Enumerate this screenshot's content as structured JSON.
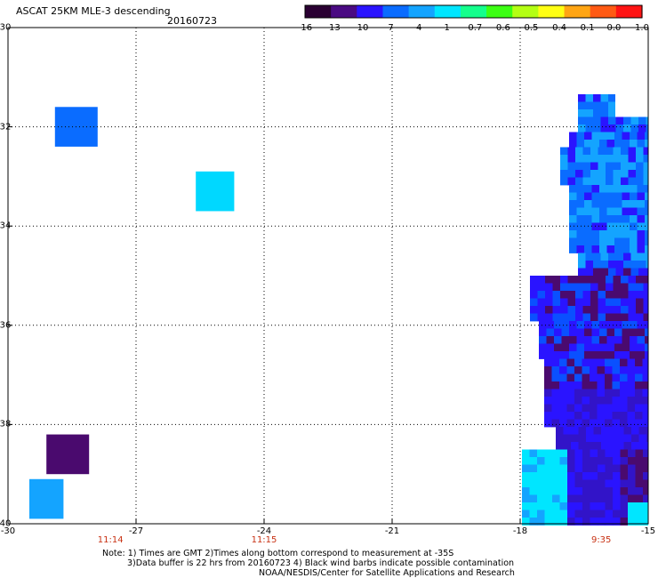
{
  "header": {
    "title": "ASCAT 25KM MLE-3 descending",
    "date": "20160723"
  },
  "colorbar": {
    "labels": [
      "-16",
      "-13",
      "-10",
      "-7",
      "-4",
      "-1",
      "-0.7",
      "-0.6",
      "-0.5",
      "-0.4",
      "-0.1",
      "0.0",
      "1.0"
    ],
    "colors": [
      "#2a0032",
      "#4a0a82",
      "#2a14ff",
      "#0a6cff",
      "#14a4ff",
      "#00e6ff",
      "#14ff8c",
      "#3cff14",
      "#b4ff14",
      "#ffff14",
      "#ffa514",
      "#ff5a14",
      "#ff1414"
    ]
  },
  "map": {
    "lat_range": [
      -40,
      -30
    ],
    "lon_range": [
      -30,
      -15
    ],
    "y_ticks": [
      "-30",
      "-32",
      "-34",
      "-36",
      "-38",
      "-40"
    ],
    "x_ticks": [
      "-30",
      "-27",
      "-24",
      "-21",
      "-18",
      "-15"
    ],
    "pass_times": [
      {
        "text": "11:14",
        "lon": -27.6
      },
      {
        "text": "11:15",
        "lon": -24.0
      },
      {
        "text": "9:35",
        "lon": -16.1
      }
    ],
    "isolated_cells": [
      {
        "lon": [
          -28.9,
          -27.9
        ],
        "lat": [
          -32.4,
          -31.6
        ],
        "color": "#0a6cff"
      },
      {
        "lon": [
          -25.6,
          -24.7
        ],
        "lat": [
          -33.7,
          -32.9
        ],
        "color": "#00d8ff"
      },
      {
        "lon": [
          -29.1,
          -28.1
        ],
        "lat": [
          -39.0,
          -38.2
        ],
        "color": "#4a0a6e"
      },
      {
        "lon": [
          -29.5,
          -28.7
        ],
        "lat": [
          -39.9,
          -39.1
        ],
        "color": "#14a4ff"
      }
    ]
  },
  "notes": {
    "line1": "Note: 1) Times are GMT 2)Times along bottom correspond to measurement at -35S",
    "line2": "3)Data buffer is 22 hrs from 20160723 4) Black wind barbs indicate possible contamination",
    "line3": "NOAA/NESDIS/Center for Satellite Applications and Research"
  }
}
